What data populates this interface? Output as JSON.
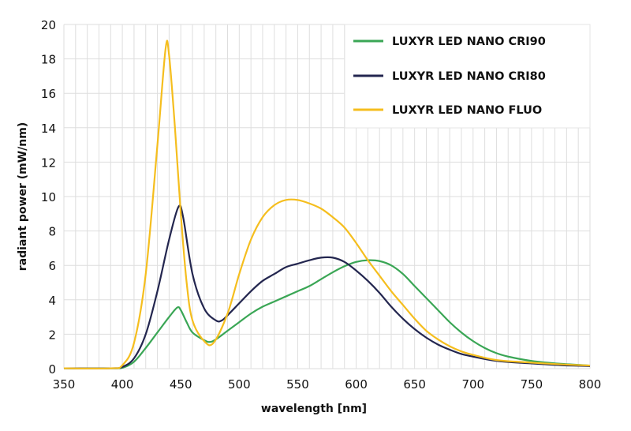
{
  "chart_data": {
    "type": "line",
    "title": "",
    "xlabel": "wavelength [nm]",
    "ylabel": "radiant power (mW/nm)",
    "xlim": [
      350,
      800
    ],
    "ylim": [
      0,
      20
    ],
    "xticks": [
      350,
      400,
      450,
      500,
      550,
      600,
      650,
      700,
      750,
      800
    ],
    "yticks": [
      0,
      2,
      4,
      6,
      8,
      10,
      12,
      14,
      16,
      18,
      20
    ],
    "grid": true,
    "legend_position": "top-right",
    "series": [
      {
        "name": "LUXYR LED NANO CRI90",
        "color": "#3aa655",
        "x": [
          350,
          390,
          400,
          410,
          420,
          430,
          440,
          447,
          450,
          455,
          460,
          470,
          475,
          480,
          490,
          500,
          510,
          520,
          530,
          540,
          550,
          560,
          570,
          580,
          590,
          600,
          610,
          620,
          630,
          640,
          650,
          660,
          670,
          680,
          690,
          700,
          710,
          720,
          730,
          750,
          775,
          800
        ],
        "y": [
          0.02,
          0.02,
          0.05,
          0.4,
          1.2,
          2.1,
          3.0,
          3.55,
          3.4,
          2.7,
          2.1,
          1.65,
          1.55,
          1.7,
          2.2,
          2.7,
          3.2,
          3.6,
          3.9,
          4.2,
          4.5,
          4.8,
          5.2,
          5.6,
          5.95,
          6.2,
          6.3,
          6.25,
          6.0,
          5.5,
          4.8,
          4.1,
          3.4,
          2.7,
          2.1,
          1.6,
          1.2,
          0.9,
          0.7,
          0.45,
          0.28,
          0.18
        ]
      },
      {
        "name": "LUXYR LED NANO CRI80",
        "color": "#23264f",
        "x": [
          350,
          390,
          400,
          410,
          420,
          430,
          440,
          448,
          452,
          460,
          470,
          480,
          485,
          490,
          500,
          510,
          520,
          530,
          540,
          550,
          560,
          570,
          580,
          590,
          600,
          610,
          620,
          630,
          640,
          650,
          660,
          670,
          680,
          690,
          700,
          720,
          750,
          775,
          800
        ],
        "y": [
          0.02,
          0.02,
          0.1,
          0.6,
          2.0,
          4.5,
          7.5,
          9.4,
          8.8,
          5.5,
          3.5,
          2.8,
          2.8,
          3.1,
          3.8,
          4.5,
          5.1,
          5.5,
          5.9,
          6.1,
          6.3,
          6.45,
          6.45,
          6.2,
          5.7,
          5.1,
          4.4,
          3.6,
          2.9,
          2.3,
          1.8,
          1.4,
          1.1,
          0.85,
          0.7,
          0.45,
          0.3,
          0.2,
          0.15
        ]
      },
      {
        "name": "LUXYR LED NANO FLUO",
        "color": "#f5be1e",
        "x": [
          350,
          390,
          400,
          410,
          420,
          430,
          437,
          440,
          445,
          450,
          455,
          460,
          470,
          478,
          490,
          500,
          510,
          520,
          530,
          540,
          550,
          560,
          570,
          580,
          590,
          600,
          610,
          620,
          630,
          640,
          650,
          660,
          670,
          680,
          690,
          700,
          720,
          750,
          775,
          800
        ],
        "y": [
          0.02,
          0.02,
          0.2,
          1.5,
          5.5,
          13.0,
          18.6,
          18.2,
          14.0,
          9.0,
          5.0,
          2.8,
          1.6,
          1.5,
          3.2,
          5.5,
          7.5,
          8.8,
          9.5,
          9.8,
          9.8,
          9.6,
          9.3,
          8.8,
          8.2,
          7.3,
          6.3,
          5.4,
          4.5,
          3.7,
          2.9,
          2.2,
          1.7,
          1.3,
          1.0,
          0.8,
          0.5,
          0.35,
          0.25,
          0.18
        ]
      }
    ]
  }
}
